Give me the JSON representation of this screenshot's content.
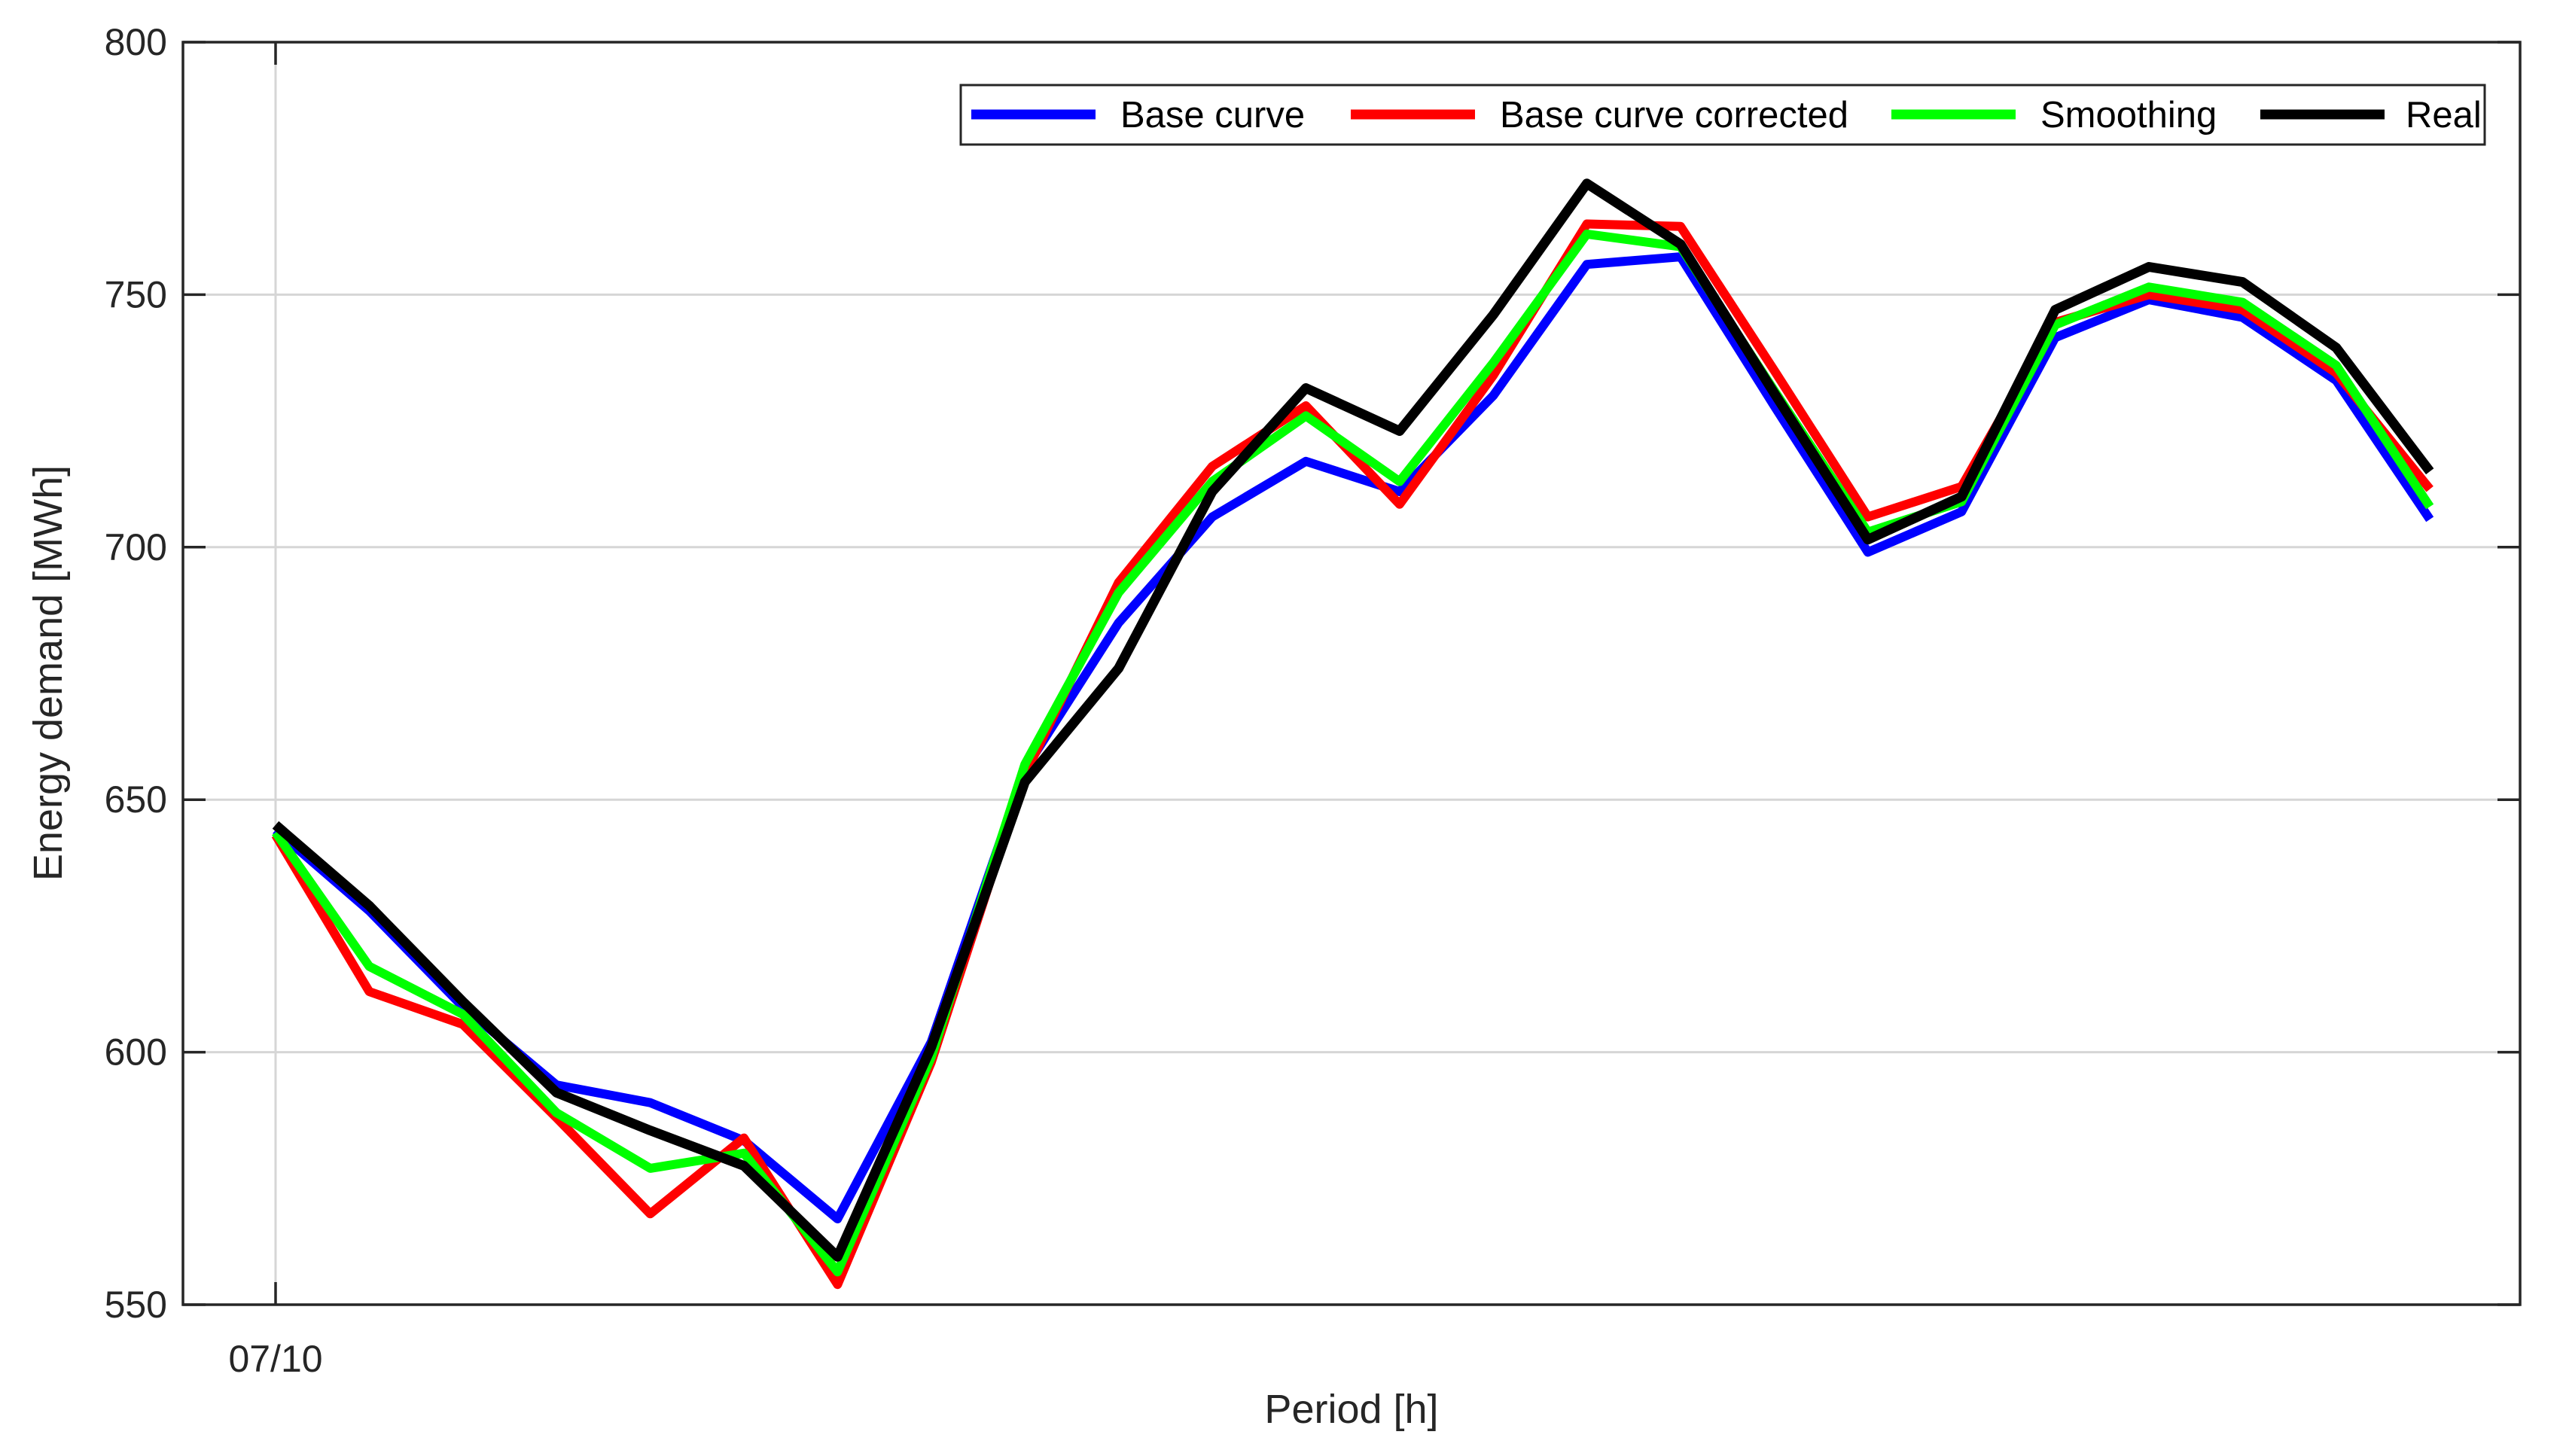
{
  "figure": {
    "background": "#ffffff",
    "axis_color": "#262626",
    "grid_color": "#d6d6d6",
    "plot_bg": "#ffffff"
  },
  "chart_data": {
    "type": "line",
    "title": "",
    "xlabel": "Period [h]",
    "ylabel": "Energy demand [MWh]",
    "x_tick_label": "07/10",
    "x": [
      0,
      1,
      2,
      3,
      4,
      5,
      6,
      7,
      8,
      9,
      10,
      11,
      12,
      13,
      14,
      15,
      16,
      17,
      18,
      19,
      20,
      21,
      22,
      23
    ],
    "x_note": "hourly periods of day 07/10; only the first tick is labeled",
    "ylim": [
      550,
      800
    ],
    "y_ticks": [
      550,
      600,
      650,
      700,
      750,
      800
    ],
    "grid": "horizontal gridlines at y ticks plus one vertical gridline at first hour",
    "legend_position": "top inside axes, horizontal row",
    "legend_entries": [
      "Base curve",
      "Base curve corrected",
      "Smoothing",
      "Real"
    ],
    "series": [
      {
        "name": "Base curve",
        "color": "#0000ff",
        "values": [
          644,
          628,
          609,
          593.5,
          590,
          582.5,
          567,
          602,
          656,
          685,
          706,
          717,
          711,
          730,
          756,
          757.5,
          728,
          699,
          707,
          741.5,
          749,
          745.5,
          733,
          705.5
        ]
      },
      {
        "name": "Base curve corrected",
        "color": "#ff0000",
        "values": [
          643,
          612,
          605.5,
          587,
          568,
          583,
          554,
          598,
          655,
          693,
          716,
          728,
          708.5,
          734,
          764,
          763.5,
          735,
          706,
          712,
          744.5,
          750,
          747,
          734.5,
          711.5
        ]
      },
      {
        "name": "Smoothing",
        "color": "#00ff00",
        "values": [
          643.5,
          617,
          607.5,
          588,
          577,
          580,
          556.5,
          599,
          657,
          691,
          713,
          726,
          713,
          736.5,
          762,
          759.5,
          731,
          703,
          709,
          744,
          751.5,
          748.5,
          736,
          708
        ]
      },
      {
        "name": "Real",
        "color": "#000000",
        "values": [
          645,
          629,
          610,
          592,
          584.5,
          577.5,
          559.5,
          601,
          653.5,
          676,
          711,
          731.5,
          723,
          746,
          772,
          760,
          730.5,
          701.5,
          710,
          747,
          755.5,
          752.5,
          739.5,
          715
        ]
      }
    ]
  }
}
